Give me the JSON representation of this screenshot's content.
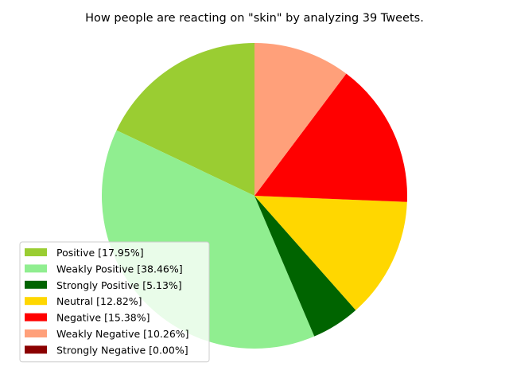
{
  "chart_data": {
    "type": "pie",
    "title": "How people are reacting on \"skin\" by analyzing 39 Tweets.",
    "legend_position": "lower-left",
    "start_angle_deg": 90,
    "direction": "counterclockwise",
    "slices": [
      {
        "label": "Positive [17.95%]",
        "value": 17.95,
        "color": "#9ACD32"
      },
      {
        "label": "Weakly Positive [38.46%]",
        "value": 38.46,
        "color": "#90EE90"
      },
      {
        "label": "Strongly Positive [5.13%]",
        "value": 5.13,
        "color": "#006400"
      },
      {
        "label": "Neutral [12.82%]",
        "value": 12.82,
        "color": "#FFD700"
      },
      {
        "label": "Negative [15.38%]",
        "value": 15.38,
        "color": "#FF0000"
      },
      {
        "label": "Weakly Negative [10.26%]",
        "value": 10.26,
        "color": "#FFA07A"
      },
      {
        "label": "Strongly Negative [0.00%]",
        "value": 0.0,
        "color": "#8B0000"
      }
    ]
  }
}
